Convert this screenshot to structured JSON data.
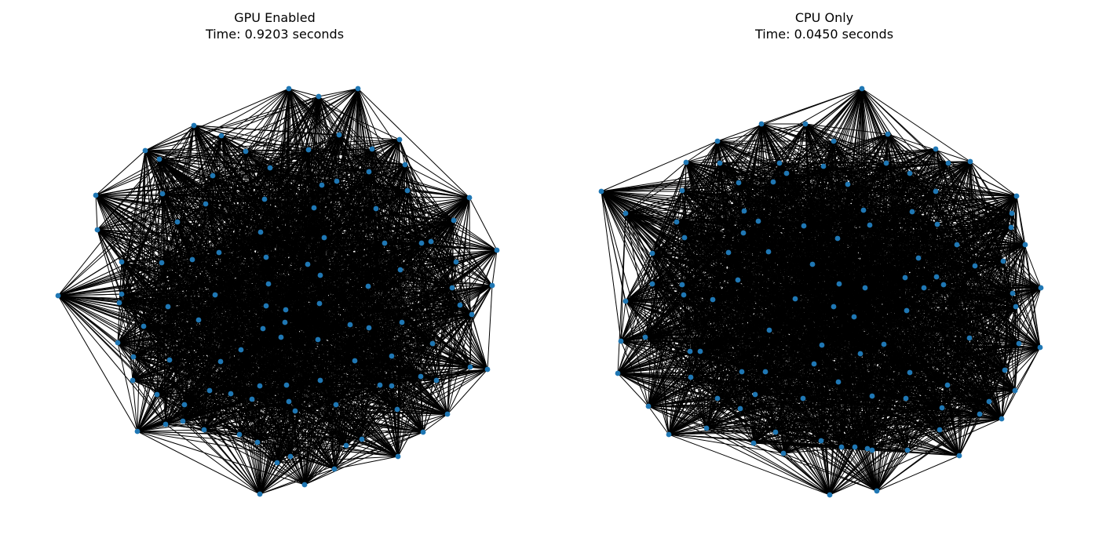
{
  "figure": {
    "panels": [
      {
        "title_line1": "GPU Enabled",
        "title_line2": "Time: 0.9203 seconds"
      },
      {
        "title_line1": "CPU Only",
        "title_line2": "Time: 0.0450 seconds"
      }
    ],
    "node_color": "#1f77b4",
    "edge_color": "#000000"
  }
}
